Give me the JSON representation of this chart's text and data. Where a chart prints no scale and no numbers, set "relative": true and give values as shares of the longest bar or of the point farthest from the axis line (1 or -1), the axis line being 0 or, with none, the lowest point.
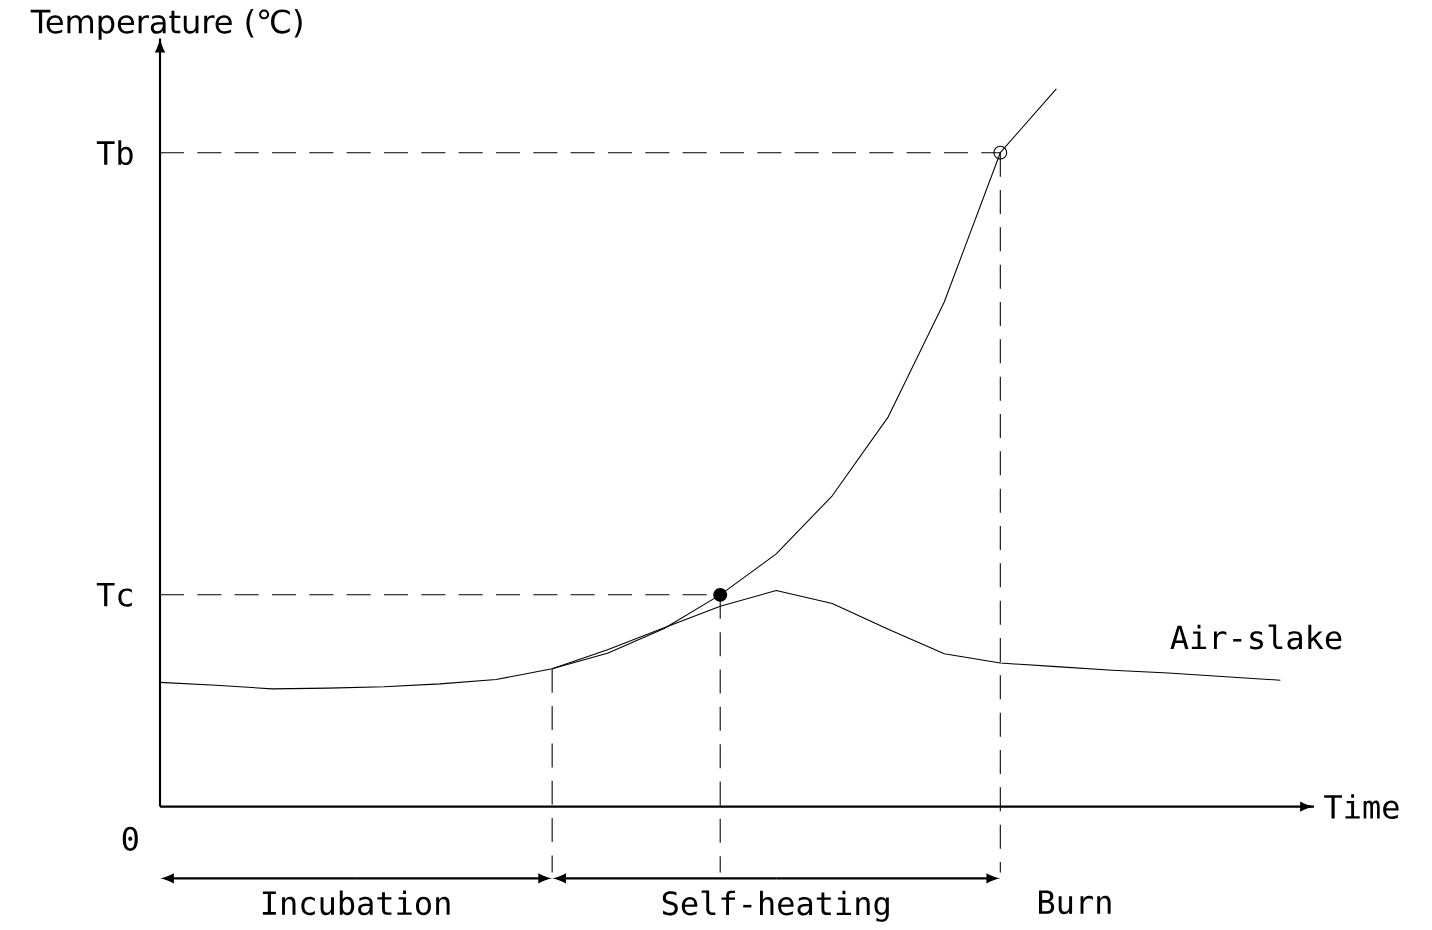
{
  "chart_data": {
    "type": "line",
    "relative": true,
    "ylabel": "Temperature (℃)",
    "xlabel": "Time",
    "categories": [
      null,
      null,
      null,
      null,
      null,
      null,
      null,
      null,
      null,
      null,
      null,
      null,
      null,
      null,
      null,
      null,
      null,
      null,
      null,
      null,
      null
    ],
    "series": [
      {
        "color": "#000000",
        "values": [
          0.173,
          0.169,
          0.164,
          0.165,
          0.167,
          0.171,
          0.177,
          0.192,
          0.214,
          0.248,
          0.295,
          0.352,
          0.433,
          0.543,
          0.703,
          0.911,
          1,
          null,
          null,
          null,
          null
        ]
      },
      {
        "name": "Air-slake",
        "color": "#000000",
        "values": [
          null,
          null,
          null,
          null,
          null,
          null,
          null,
          0.192,
          0.219,
          0.249,
          0.279,
          0.301,
          0.283,
          0.247,
          0.213,
          0.2,
          0.195,
          0.19,
          0.186,
          0.181,
          0.176
        ]
      }
    ],
    "ref_lines": [
      {
        "axis": "y",
        "value": 0.295,
        "label": "Tc",
        "line_style": "dashed"
      },
      {
        "axis": "y",
        "value": 0.911,
        "label": "Tb",
        "line_style": "dashed"
      }
    ],
    "annotations": [
      "0",
      "Incubation",
      "Self-heating",
      "Burn"
    ]
  }
}
